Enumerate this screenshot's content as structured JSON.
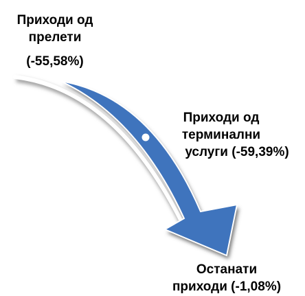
{
  "nodes": [
    {
      "lines": [
        "Приходи од",
        "прелети",
        "(-55,58%)"
      ]
    },
    {
      "lines": [
        "Приходи од",
        "терминални",
        "услуги (-59,39%)"
      ]
    },
    {
      "lines": [
        "Останати",
        "приходи (-1,08%)"
      ]
    }
  ]
}
